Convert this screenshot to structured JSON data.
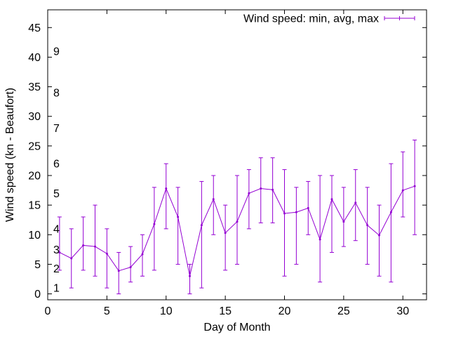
{
  "chart_data": {
    "type": "line",
    "title": "",
    "xlabel": "Day of Month",
    "ylabel": "Wind speed (kn - Beaufort)",
    "xlim": [
      0,
      32
    ],
    "ylim": [
      -1,
      48
    ],
    "xticks": [
      0,
      5,
      10,
      15,
      20,
      25,
      30
    ],
    "yticks": [
      0,
      5,
      10,
      15,
      20,
      25,
      30,
      35,
      40,
      45
    ],
    "grid": false,
    "legend_position": "top-right",
    "series": [
      {
        "name": "Wind speed: min, avg, max",
        "color": "#9400d3",
        "points": [
          {
            "x": 1,
            "y": 7,
            "min": 4,
            "max": 13
          },
          {
            "x": 2,
            "y": 6,
            "min": 1,
            "max": 11
          },
          {
            "x": 3,
            "y": 8.2,
            "min": 4,
            "max": 13
          },
          {
            "x": 4,
            "y": 8,
            "min": 3,
            "max": 15
          },
          {
            "x": 5,
            "y": 6.8,
            "min": 1,
            "max": 11
          },
          {
            "x": 6,
            "y": 3.9,
            "min": 0,
            "max": 7
          },
          {
            "x": 7,
            "y": 4.5,
            "min": 2,
            "max": 8
          },
          {
            "x": 8,
            "y": 6.7,
            "min": 3,
            "max": 10
          },
          {
            "x": 9,
            "y": 11.8,
            "min": 4,
            "max": 18
          },
          {
            "x": 10,
            "y": 17.8,
            "min": 11,
            "max": 22
          },
          {
            "x": 11,
            "y": 13,
            "min": 5,
            "max": 18
          },
          {
            "x": 12,
            "y": 3,
            "min": 0,
            "max": 5
          },
          {
            "x": 13,
            "y": 11.6,
            "min": 1,
            "max": 19
          },
          {
            "x": 14,
            "y": 16,
            "min": 10,
            "max": 20
          },
          {
            "x": 15,
            "y": 10.3,
            "min": 4,
            "max": 15
          },
          {
            "x": 16,
            "y": 12.2,
            "min": 5,
            "max": 20
          },
          {
            "x": 17,
            "y": 17,
            "min": 11,
            "max": 21
          },
          {
            "x": 18,
            "y": 17.8,
            "min": 12,
            "max": 23
          },
          {
            "x": 19,
            "y": 17.6,
            "min": 12,
            "max": 23
          },
          {
            "x": 20,
            "y": 13.6,
            "min": 3,
            "max": 21
          },
          {
            "x": 21,
            "y": 13.8,
            "min": 5,
            "max": 18
          },
          {
            "x": 22,
            "y": 14.5,
            "min": 10,
            "max": 19
          },
          {
            "x": 23,
            "y": 9.2,
            "min": 2,
            "max": 20
          },
          {
            "x": 24,
            "y": 16,
            "min": 7,
            "max": 20
          },
          {
            "x": 25,
            "y": 12.2,
            "min": 8,
            "max": 18
          },
          {
            "x": 26,
            "y": 15.4,
            "min": 9,
            "max": 21
          },
          {
            "x": 27,
            "y": 11.6,
            "min": 5,
            "max": 18
          },
          {
            "x": 28,
            "y": 9.9,
            "min": 3,
            "max": 15
          },
          {
            "x": 29,
            "y": 13.8,
            "min": 2,
            "max": 22
          },
          {
            "x": 30,
            "y": 17.5,
            "min": 13,
            "max": 24
          },
          {
            "x": 31,
            "y": 18.2,
            "min": 10,
            "max": 26
          }
        ]
      }
    ],
    "annotations": [
      {
        "text": "1",
        "y": 1
      },
      {
        "text": "2",
        "y": 4.3
      },
      {
        "text": "3",
        "y": 7.5
      },
      {
        "text": "4",
        "y": 11
      },
      {
        "text": "5",
        "y": 17
      },
      {
        "text": "6",
        "y": 22
      },
      {
        "text": "7",
        "y": 28
      },
      {
        "text": "8",
        "y": 34
      },
      {
        "text": "9",
        "y": 41
      }
    ]
  }
}
